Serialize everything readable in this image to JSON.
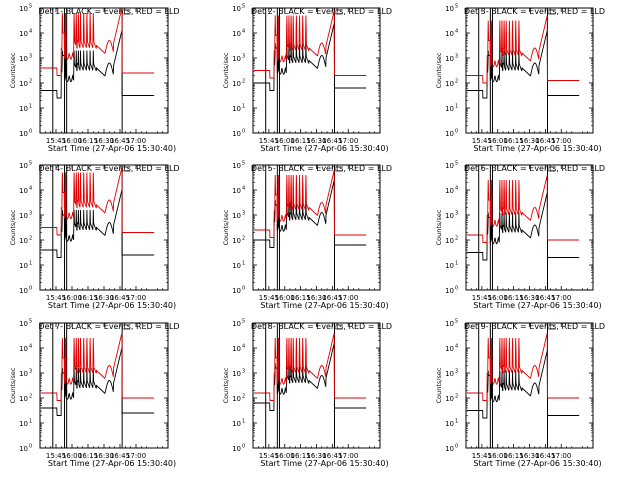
{
  "chart_data": [
    {
      "type": "line",
      "title": "Det 1- BLACK = Events, RED = LLD",
      "xlabel": "Start Time (27-Apr-06 15:30:40)",
      "ylabel": "Counts/sec",
      "yscale": "log",
      "ylim_exp": [
        0,
        5
      ],
      "x_ticks": [
        "15:45",
        "16:00",
        "16:15",
        "16:30",
        "16:45",
        "17:00"
      ],
      "xlim_min": [
        -15,
        105
      ],
      "series": [
        {
          "name": "Events",
          "color": "#000000",
          "base": 1.7
        },
        {
          "name": "LLD",
          "color": "#e00000",
          "base": 2.6
        }
      ],
      "spike_times": [
        6,
        9,
        17,
        19,
        21,
        23,
        26,
        29,
        32,
        35
      ]
    },
    {
      "type": "line",
      "title": "Det 2- BLACK = Events, RED = LLD",
      "xlabel": "Start Time (27-Apr-06 15:30:40)",
      "ylabel": "Counts/sec",
      "yscale": "log",
      "ylim_exp": [
        0,
        5
      ],
      "x_ticks": [
        "15:45",
        "16:00",
        "16:15",
        "16:30",
        "16:45",
        "17:00"
      ],
      "xlim_min": [
        -15,
        105
      ],
      "series": [
        {
          "name": "Events",
          "color": "#000000",
          "base": 2.0
        },
        {
          "name": "LLD",
          "color": "#e00000",
          "base": 2.5
        }
      ],
      "spike_times": [
        6,
        9,
        17,
        19,
        21,
        23,
        26,
        29,
        32,
        35
      ]
    },
    {
      "type": "line",
      "title": "Det 3- BLACK = Events, RED = LLD",
      "xlabel": "Start Time (27-Apr-06 15:30:40)",
      "ylabel": "Counts/sec",
      "yscale": "log",
      "ylim_exp": [
        0,
        5
      ],
      "x_ticks": [
        "15:45",
        "16:00",
        "16:15",
        "16:30",
        "16:45",
        "17:00"
      ],
      "xlim_min": [
        -15,
        105
      ],
      "series": [
        {
          "name": "Events",
          "color": "#000000",
          "base": 1.7
        },
        {
          "name": "LLD",
          "color": "#e00000",
          "base": 2.3
        }
      ],
      "spike_times": [
        6,
        9,
        17,
        19,
        21,
        23,
        26,
        29,
        32,
        35
      ]
    },
    {
      "type": "line",
      "title": "Det 4- BLACK = Events, RED = LLD",
      "xlabel": "Start Time (27-Apr-06 15:30:40)",
      "ylabel": "Counts/sec",
      "yscale": "log",
      "ylim_exp": [
        0,
        5
      ],
      "x_ticks": [
        "15:45",
        "16:00",
        "16:15",
        "16:30",
        "16:45",
        "17:00"
      ],
      "xlim_min": [
        -15,
        105
      ],
      "series": [
        {
          "name": "Events",
          "color": "#000000",
          "base": 1.6
        },
        {
          "name": "LLD",
          "color": "#e00000",
          "base": 2.5
        }
      ],
      "spike_times": [
        6,
        9,
        17,
        19,
        21,
        23,
        26,
        29,
        32,
        35
      ]
    },
    {
      "type": "line",
      "title": "Det 5- BLACK = Events, RED = LLD",
      "xlabel": "Start Time (27-Apr-06 15:30:40)",
      "ylabel": "Counts/sec",
      "yscale": "log",
      "ylim_exp": [
        0,
        5
      ],
      "x_ticks": [
        "15:45",
        "16:00",
        "16:15",
        "16:30",
        "16:45",
        "17:00"
      ],
      "xlim_min": [
        -15,
        105
      ],
      "series": [
        {
          "name": "Events",
          "color": "#000000",
          "base": 2.0
        },
        {
          "name": "LLD",
          "color": "#e00000",
          "base": 2.4
        }
      ],
      "spike_times": [
        6,
        9,
        17,
        19,
        21,
        23,
        26,
        29,
        32,
        35
      ]
    },
    {
      "type": "line",
      "title": "Det 6- BLACK = Events, RED = LLD",
      "xlabel": "Start Time (27-Apr-06 15:30:40)",
      "ylabel": "Counts/sec",
      "yscale": "log",
      "ylim_exp": [
        0,
        5
      ],
      "x_ticks": [
        "15:45",
        "16:00",
        "16:15",
        "16:30",
        "16:45",
        "17:00"
      ],
      "xlim_min": [
        -15,
        105
      ],
      "series": [
        {
          "name": "Events",
          "color": "#000000",
          "base": 1.5
        },
        {
          "name": "LLD",
          "color": "#e00000",
          "base": 2.2
        }
      ],
      "spike_times": [
        6,
        9,
        17,
        19,
        21,
        23,
        26,
        29,
        32,
        35
      ]
    },
    {
      "type": "line",
      "title": "Det 7- BLACK = Events, RED = LLD",
      "xlabel": "Start Time (27-Apr-06 15:30:40)",
      "ylabel": "Counts/sec",
      "yscale": "log",
      "ylim_exp": [
        0,
        5
      ],
      "x_ticks": [
        "15:45",
        "16:00",
        "16:15",
        "16:30",
        "16:45",
        "17:00"
      ],
      "xlim_min": [
        -15,
        105
      ],
      "series": [
        {
          "name": "Events",
          "color": "#000000",
          "base": 1.6
        },
        {
          "name": "LLD",
          "color": "#e00000",
          "base": 2.2
        }
      ],
      "spike_times": [
        6,
        9,
        17,
        19,
        21,
        23,
        26,
        29,
        32,
        35
      ]
    },
    {
      "type": "line",
      "title": "Det 8- BLACK = Events, RED = LLD",
      "xlabel": "Start Time (27-Apr-06 15:30:40)",
      "ylabel": "Counts/sec",
      "yscale": "log",
      "ylim_exp": [
        0,
        5
      ],
      "x_ticks": [
        "15:45",
        "16:00",
        "16:15",
        "16:30",
        "16:45",
        "17:00"
      ],
      "xlim_min": [
        -15,
        105
      ],
      "series": [
        {
          "name": "Events",
          "color": "#000000",
          "base": 1.8
        },
        {
          "name": "LLD",
          "color": "#e00000",
          "base": 2.2
        }
      ],
      "spike_times": [
        6,
        9,
        17,
        19,
        21,
        23,
        26,
        29,
        32,
        35
      ]
    },
    {
      "type": "line",
      "title": "Det 9- BLACK = Events, RED = LLD",
      "xlabel": "Start Time (27-Apr-06 15:30:40)",
      "ylabel": "Counts/sec",
      "yscale": "log",
      "ylim_exp": [
        0,
        5
      ],
      "x_ticks": [
        "15:45",
        "16:00",
        "16:15",
        "16:30",
        "16:45",
        "17:00"
      ],
      "xlim_min": [
        -15,
        105
      ],
      "series": [
        {
          "name": "Events",
          "color": "#000000",
          "base": 1.5
        },
        {
          "name": "LLD",
          "color": "#e00000",
          "base": 2.2
        }
      ],
      "spike_times": [
        6,
        9,
        17,
        19,
        21,
        23,
        26,
        29,
        32,
        35
      ]
    }
  ],
  "y_tick_base": "10",
  "y_tick_exponents": [
    "0",
    "1",
    "2",
    "3",
    "4",
    "5"
  ],
  "markers": {
    "vertical_lines_min": [
      -3,
      8,
      10,
      62
    ],
    "bracket_min": 63
  }
}
